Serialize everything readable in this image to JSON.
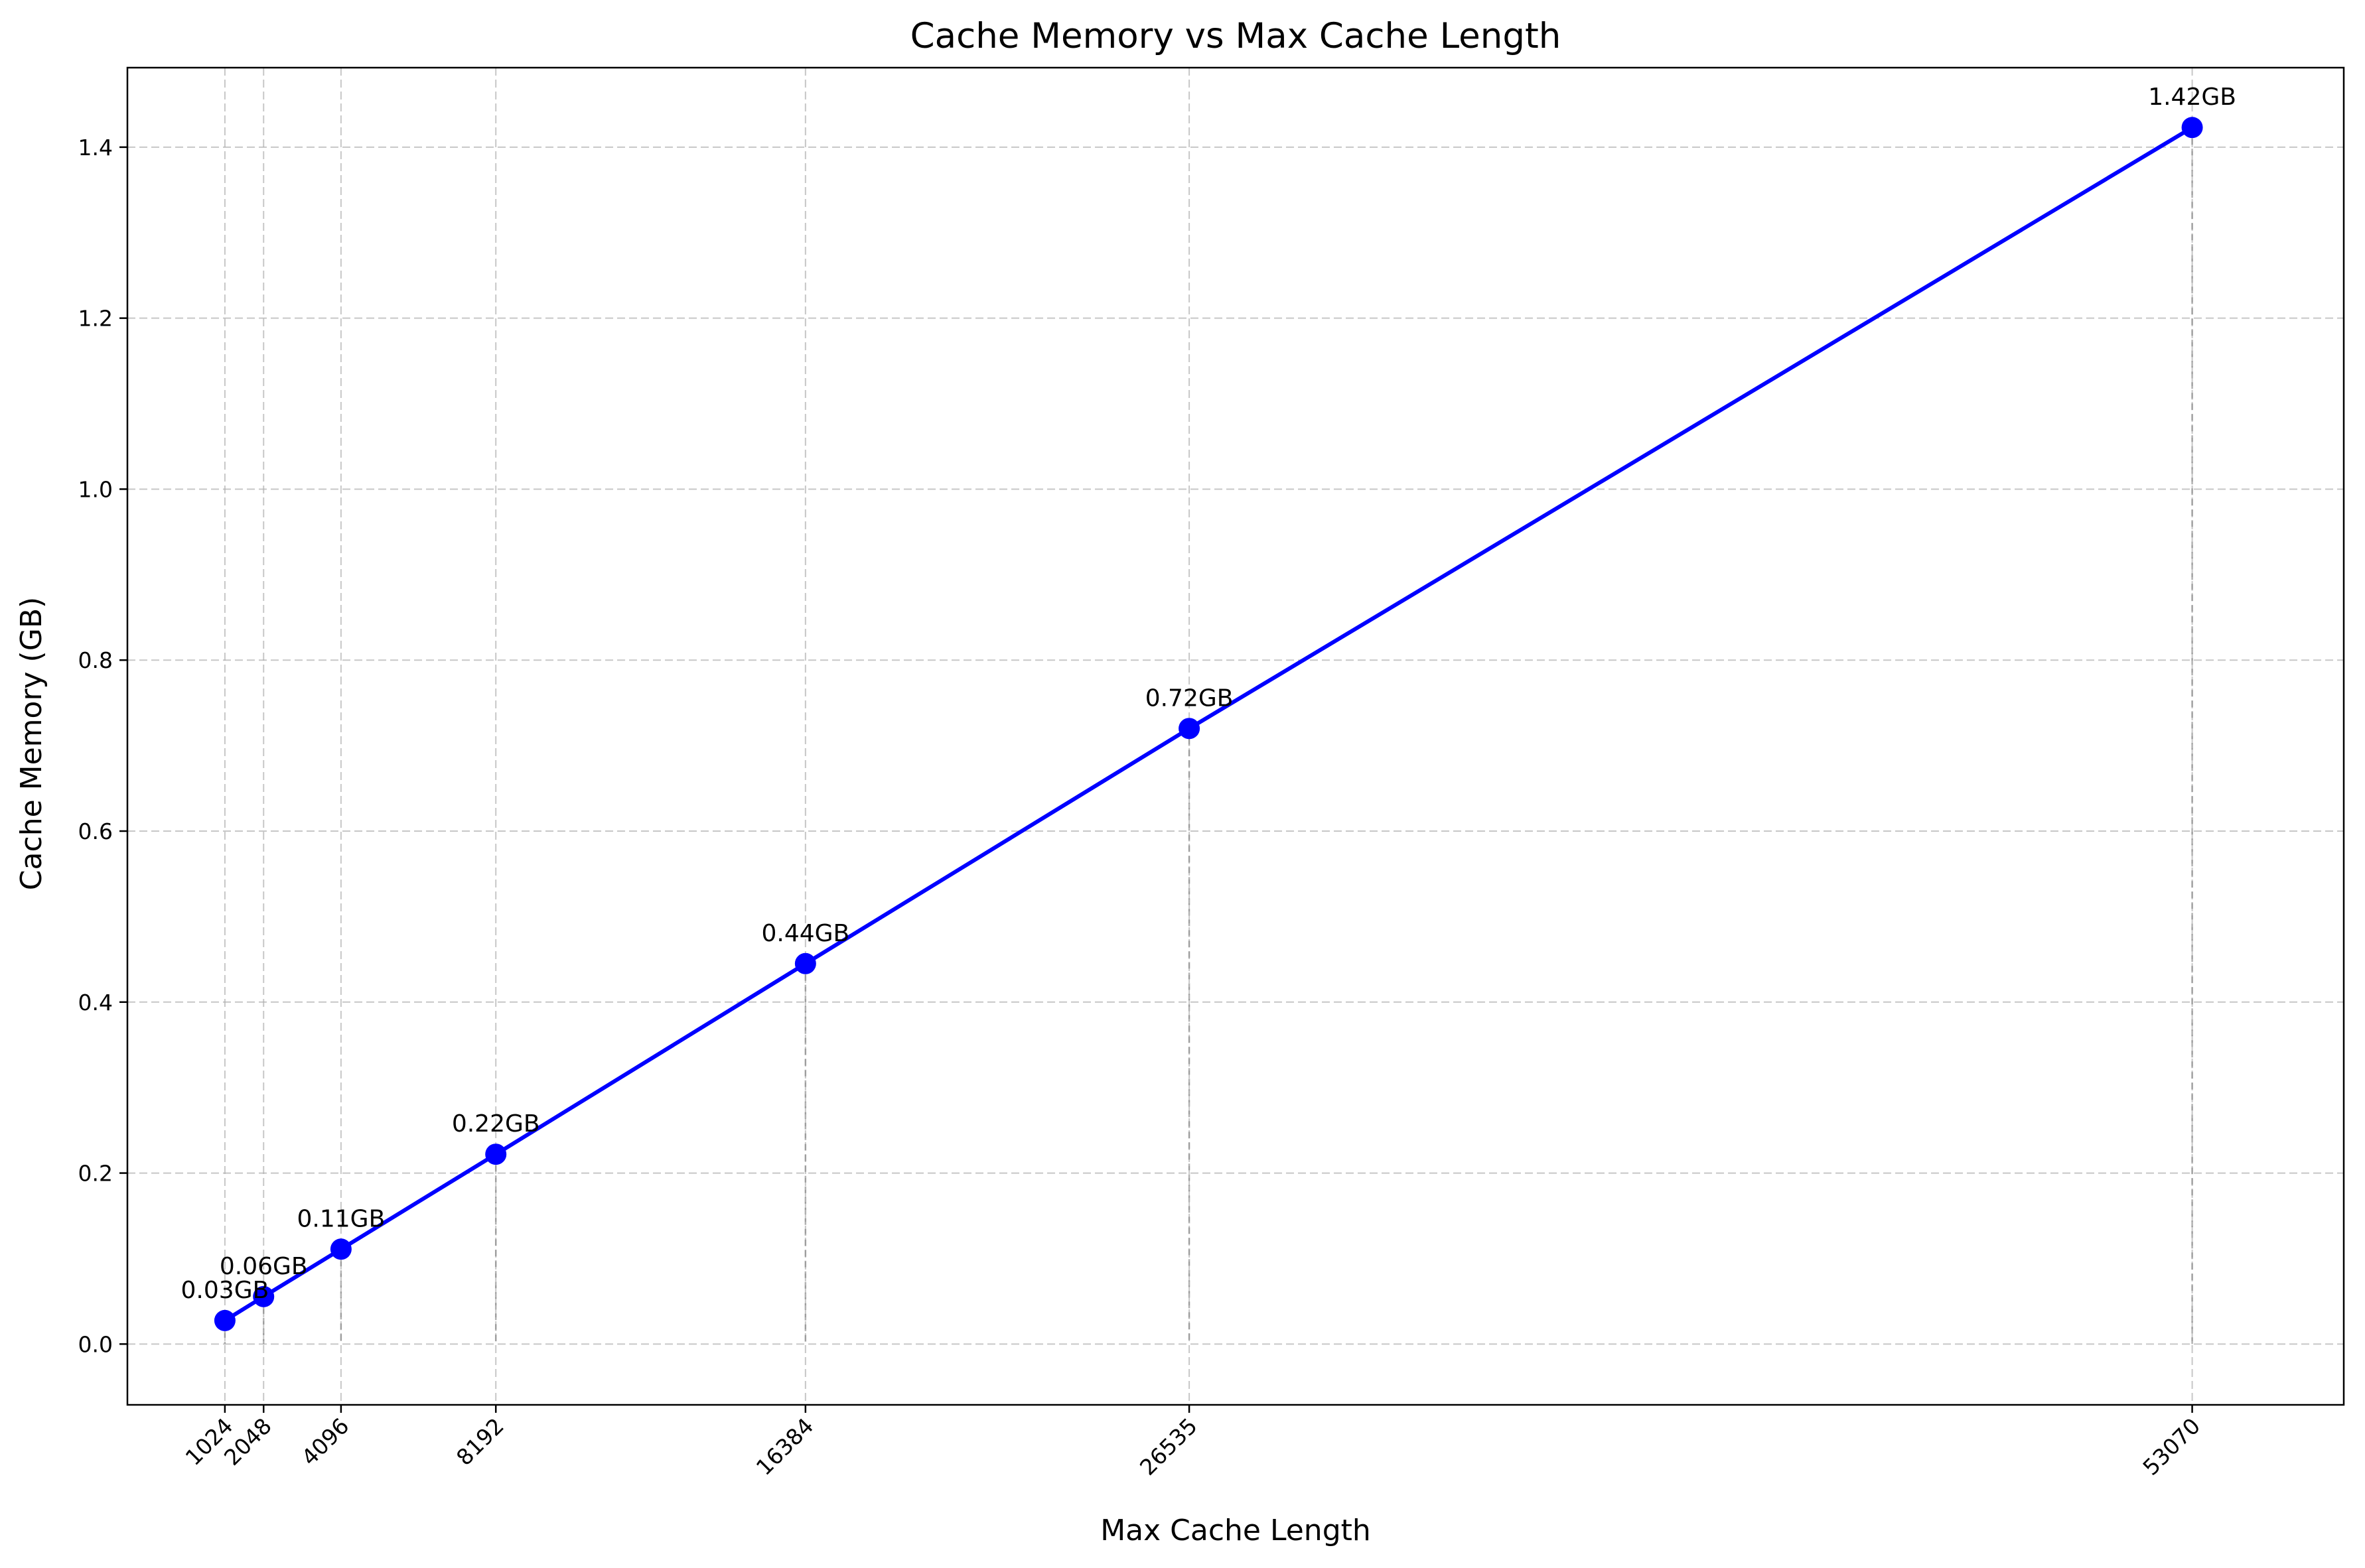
{
  "chart_data": {
    "type": "line",
    "title": "Cache Memory vs Max Cache Length",
    "xlabel": "Max Cache Length",
    "ylabel": "Cache Memory (GB)",
    "x": [
      1024,
      2048,
      4096,
      8192,
      16384,
      26535,
      53070
    ],
    "x_tick_labels": [
      "1024",
      "2048",
      "4096",
      "8192",
      "16384",
      "26535",
      "53070"
    ],
    "y_ticks": [
      0.0,
      0.2,
      0.4,
      0.6,
      0.8,
      1.0,
      1.2,
      1.4
    ],
    "y_tick_labels": [
      "0.0",
      "0.2",
      "0.4",
      "0.6",
      "0.8",
      "1.0",
      "1.2",
      "1.4"
    ],
    "series": [
      {
        "values": [
          0.0275,
          0.0555,
          0.111,
          0.222,
          0.445,
          0.72,
          1.423
        ],
        "data_labels": [
          "0.03GB",
          "0.06GB",
          "0.11GB",
          "0.22GB",
          "0.44GB",
          "0.72GB",
          "1.42GB"
        ],
        "color": "#0000ff"
      }
    ],
    "xlim": [
      -1555,
      57080
    ],
    "ylim": [
      -0.0711,
      1.493
    ],
    "grid": true,
    "grid_color": "#b0b0b0",
    "drop_line_color": "#808080"
  }
}
